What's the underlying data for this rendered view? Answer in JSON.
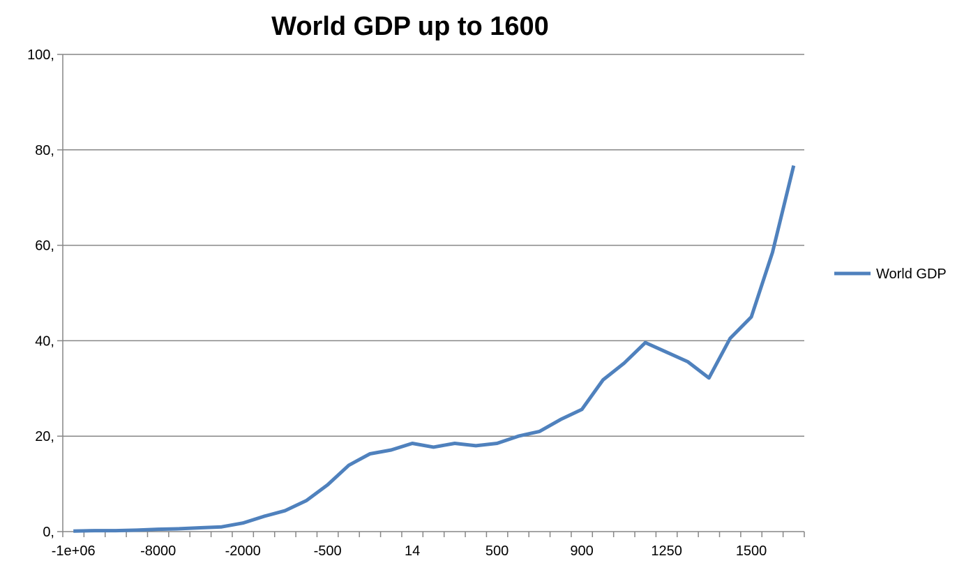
{
  "chart_data": {
    "type": "line",
    "title": "World GDP up to 1600",
    "xlabel": "",
    "ylabel": "",
    "ylim": [
      0,
      100
    ],
    "y_ticks": [
      "0,",
      "20,",
      "40,",
      "60,",
      "80,",
      "100,"
    ],
    "x_tick_labels": [
      "-1e+06",
      "-8000",
      "-2000",
      "-500",
      "14",
      "500",
      "900",
      "1250",
      "1500"
    ],
    "grid": "horizontal",
    "legend_placement": "right",
    "line_color": "#4F81BD",
    "series": [
      {
        "name": "World GDP",
        "values": [
          0.1,
          0.2,
          0.2,
          0.3,
          0.5,
          0.6,
          0.8,
          1.0,
          1.8,
          3.2,
          4.4,
          6.5,
          9.8,
          13.9,
          16.3,
          17.1,
          18.5,
          17.7,
          18.5,
          18.0,
          18.5,
          20.0,
          21.0,
          23.5,
          25.6,
          31.8,
          35.3,
          39.6,
          37.6,
          35.6,
          32.2,
          40.5,
          45.0,
          58.5,
          76.7
        ]
      }
    ]
  }
}
